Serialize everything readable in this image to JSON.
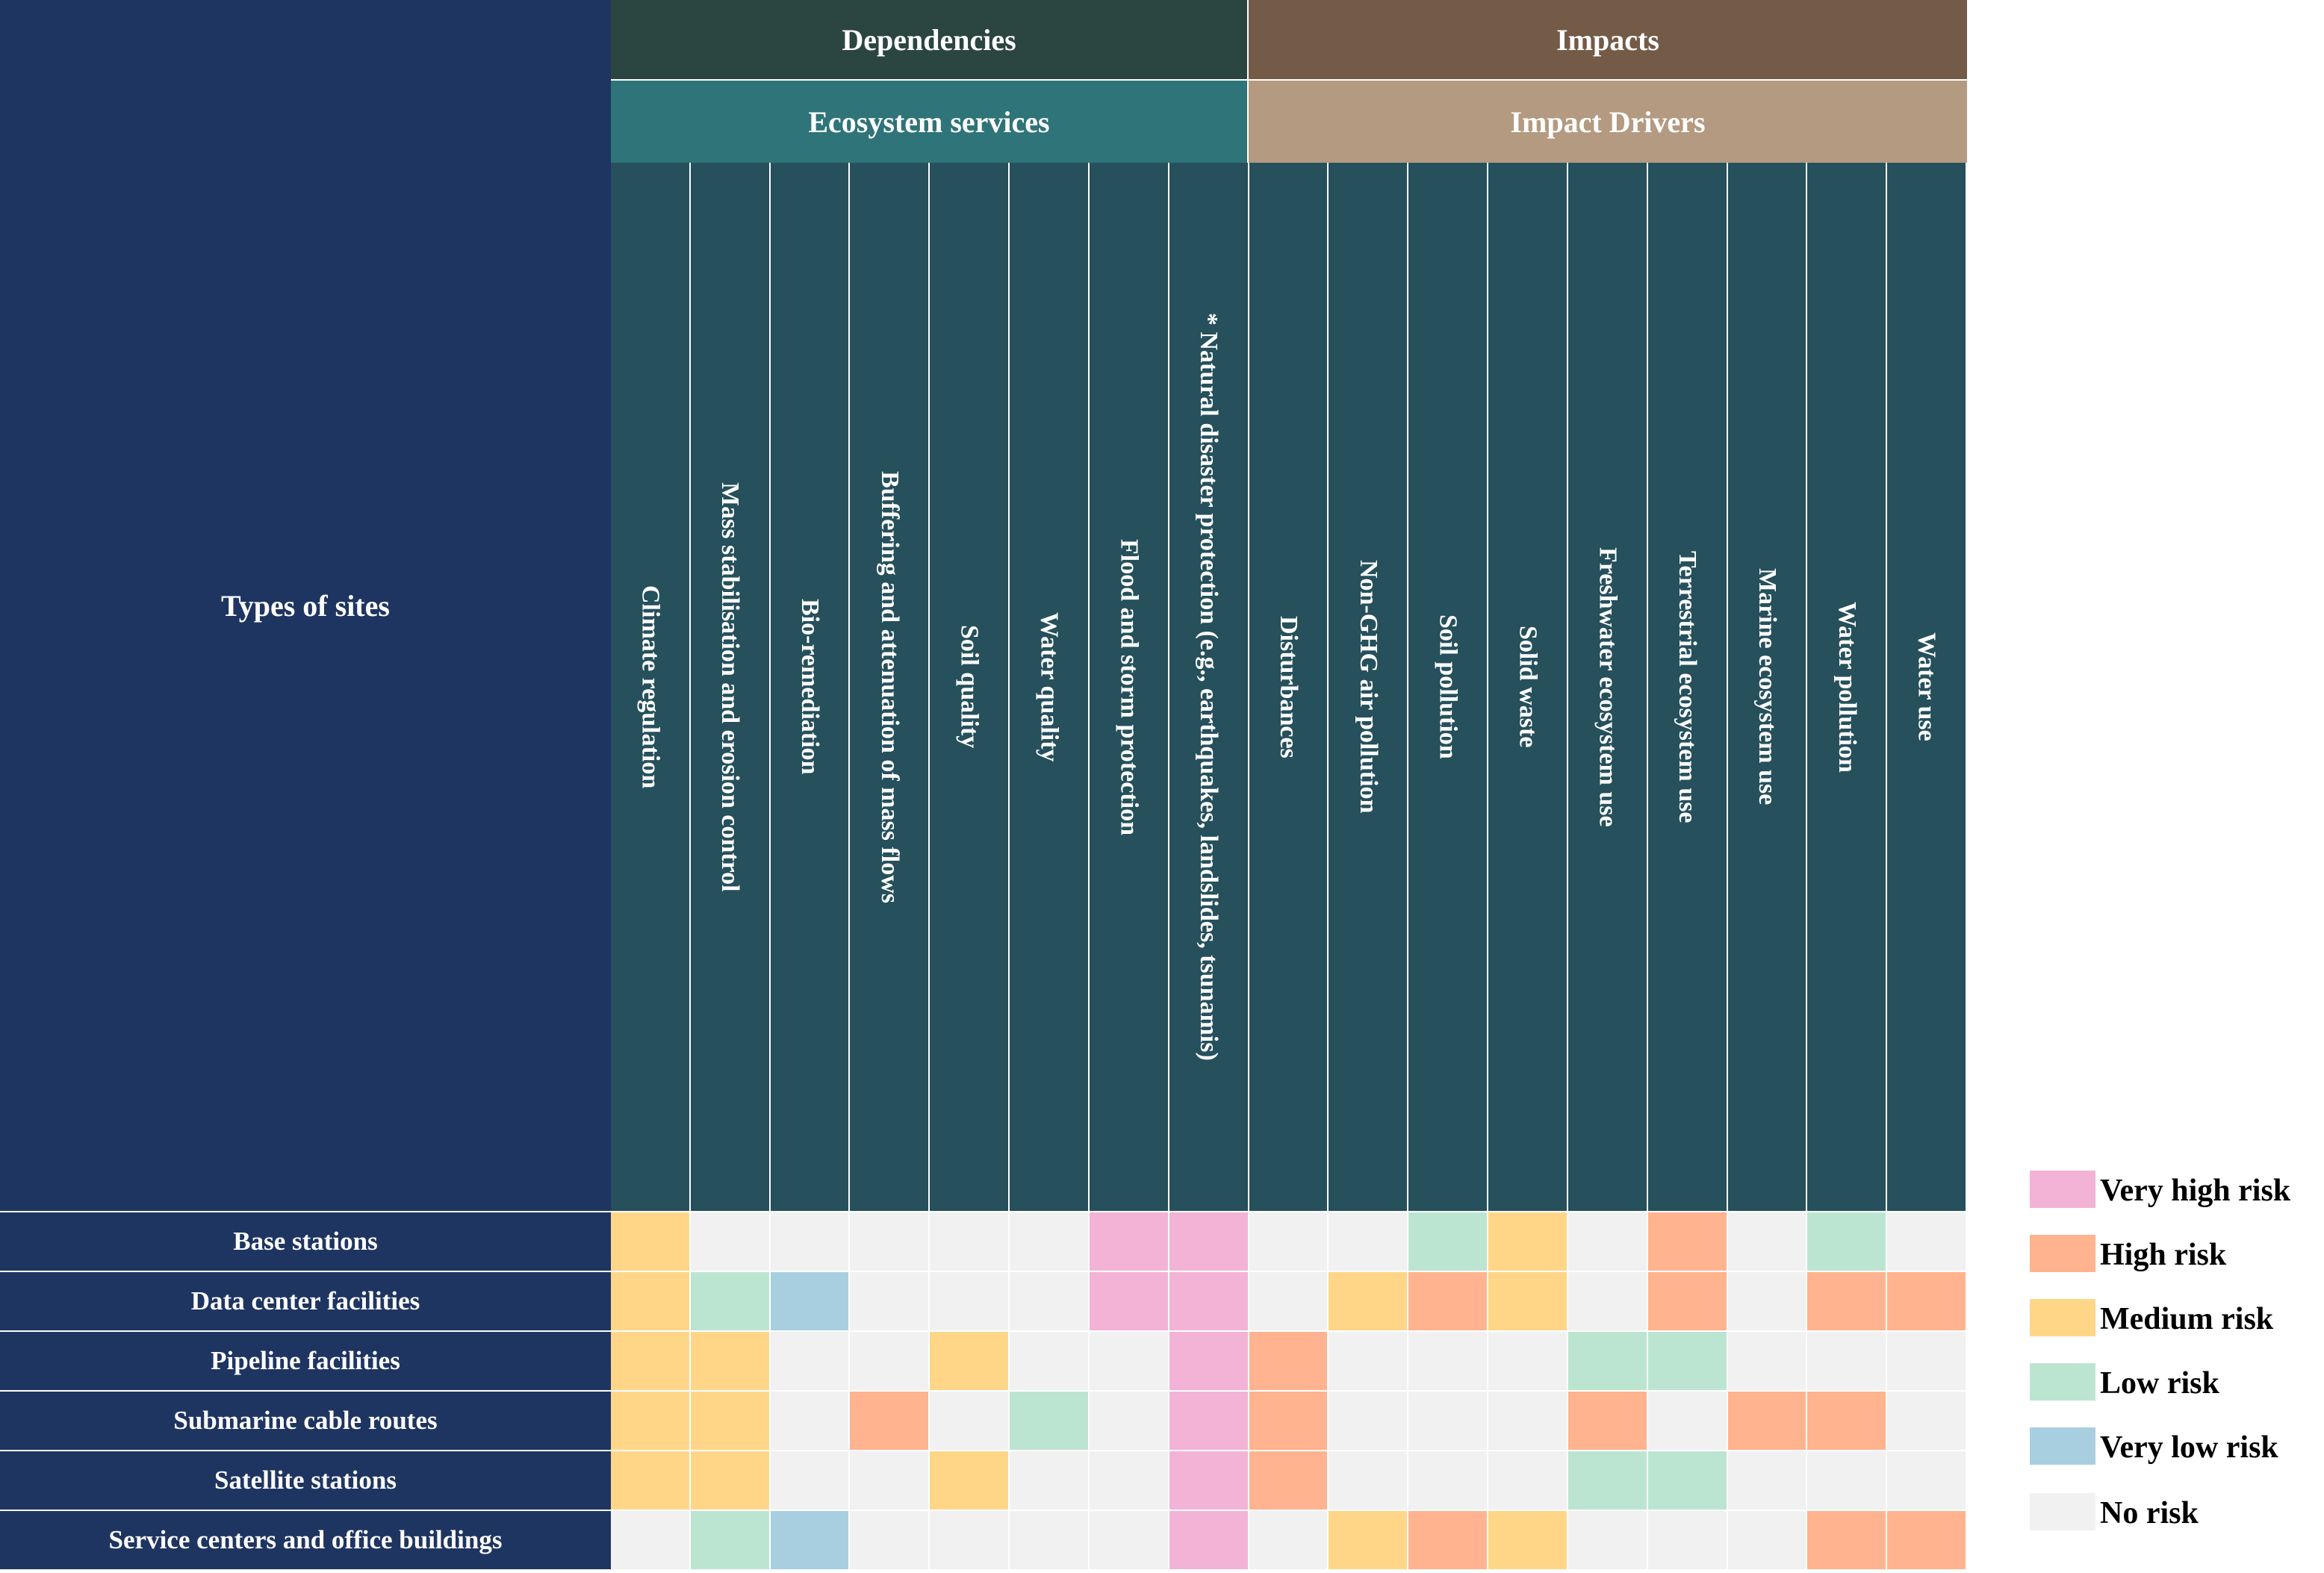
{
  "header": {
    "types_label": "Types of sites",
    "dependencies": "Dependencies",
    "impacts": "Impacts",
    "ecosystem_services": "Ecosystem services",
    "impact_drivers": "Impact Drivers"
  },
  "chart_data": {
    "type": "heatmap",
    "columns": [
      "Climate regulation",
      "Mass stabilisation and erosion control",
      "Bio-remediation",
      "Buffering and attenuation of mass flows",
      "Soil quality",
      "Water quality",
      "Flood and storm protection",
      "* Natural disaster protection (e.g., earthquakes, landslides, tsunamis)",
      "Disturbances",
      "Non-GHG air pollution",
      "Soil pollution",
      "Solid waste",
      "Freshwater ecosystem use",
      "Terrestrial ecosystem use",
      "Marine ecosystem use",
      "Water pollution",
      "Water use"
    ],
    "column_groups": [
      {
        "group": "Dependencies",
        "subgroup": "Ecosystem services",
        "count": 8
      },
      {
        "group": "Impacts",
        "subgroup": "Impact Drivers",
        "count": 9
      }
    ],
    "rows": [
      {
        "label": "Base stations",
        "values": [
          "M",
          "N",
          "N",
          "N",
          "N",
          "N",
          "VH",
          "VH",
          "N",
          "N",
          "L",
          "M",
          "N",
          "H",
          "N",
          "L",
          "N"
        ]
      },
      {
        "label": "Data center facilities",
        "values": [
          "M",
          "L",
          "VL",
          "N",
          "N",
          "N",
          "VH",
          "VH",
          "N",
          "M",
          "H",
          "M",
          "N",
          "H",
          "N",
          "H",
          "H"
        ]
      },
      {
        "label": "Pipeline facilities",
        "values": [
          "M",
          "M",
          "N",
          "N",
          "M",
          "N",
          "N",
          "VH",
          "H",
          "N",
          "N",
          "N",
          "L",
          "L",
          "N",
          "N",
          "N"
        ]
      },
      {
        "label": "Submarine cable routes",
        "values": [
          "M",
          "M",
          "N",
          "H",
          "N",
          "L",
          "N",
          "VH",
          "H",
          "N",
          "N",
          "N",
          "H",
          "N",
          "H",
          "H",
          "N"
        ]
      },
      {
        "label": "Satellite stations",
        "values": [
          "M",
          "M",
          "N",
          "N",
          "M",
          "N",
          "N",
          "VH",
          "H",
          "N",
          "N",
          "N",
          "L",
          "L",
          "N",
          "N",
          "N"
        ]
      },
      {
        "label": "Service centers and office buildings",
        "values": [
          "N",
          "L",
          "VL",
          "N",
          "N",
          "N",
          "N",
          "VH",
          "N",
          "M",
          "H",
          "M",
          "N",
          "N",
          "N",
          "H",
          "H"
        ]
      }
    ],
    "legend": [
      {
        "key": "VH",
        "label": "Very high risk",
        "color": "#f2b3d6"
      },
      {
        "key": "H",
        "label": "High risk",
        "color": "#ffb38e"
      },
      {
        "key": "M",
        "label": "Medium risk",
        "color": "#ffd688"
      },
      {
        "key": "L",
        "label": "Low risk",
        "color": "#bce5d1"
      },
      {
        "key": "VL",
        "label": "Very low risk",
        "color": "#a8cfe0"
      },
      {
        "key": "N",
        "label": "No risk",
        "color": "#f1f1f1"
      }
    ]
  }
}
